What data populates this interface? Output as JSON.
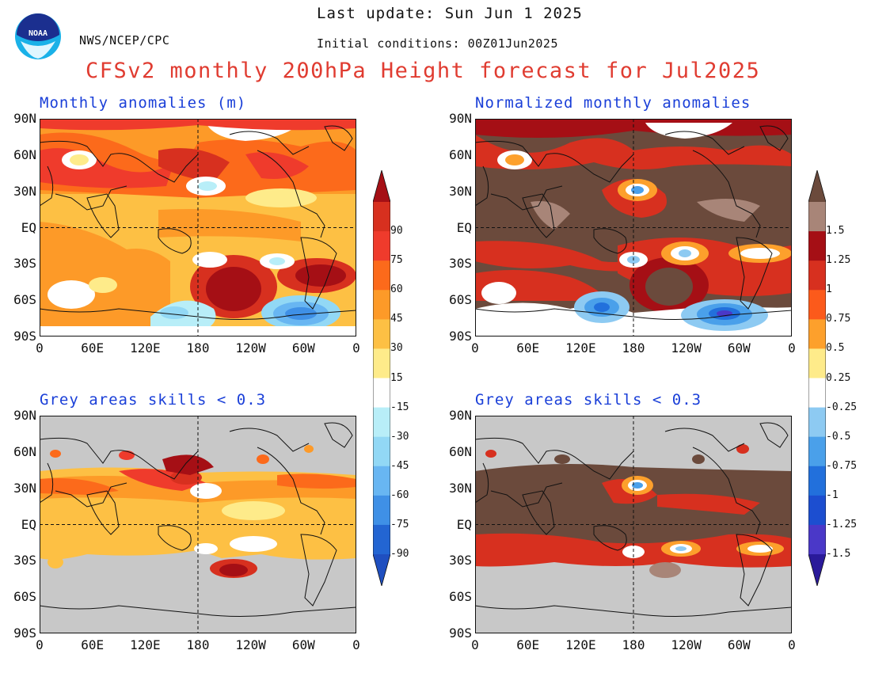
{
  "header": {
    "last_update": "Last update: Sun Jun 1 2025",
    "initial_conditions": "Initial conditions: 00Z01Jun2025",
    "agency": "NWS/NCEP/CPC",
    "logo_text": "NOAA",
    "title": "CFSv2 monthly 200hPa Height forecast for Jul2025"
  },
  "panels": {
    "top_left": "Monthly anomalies (m)",
    "top_right": "Normalized monthly anomalies",
    "bottom_left": "Grey areas skills < 0.3",
    "bottom_right": "Grey areas skills < 0.3"
  },
  "axes": {
    "lat_labels": [
      "90N",
      "60N",
      "30N",
      "EQ",
      "30S",
      "60S",
      "90S"
    ],
    "lon_labels": [
      "0",
      "60E",
      "120E",
      "180",
      "120W",
      "60W",
      "0"
    ]
  },
  "colorbar_left": {
    "labels": [
      "90",
      "75",
      "60",
      "45",
      "30",
      "15",
      "-15",
      "-30",
      "-45",
      "-60",
      "-75",
      "-90"
    ],
    "colors": [
      "#a50f15",
      "#d7301f",
      "#ef3b2c",
      "#fc6a1b",
      "#fd9a28",
      "#fdc044",
      "#feeb8a",
      "#ffffff",
      "#b8eef8",
      "#92d8f5",
      "#68b6f2",
      "#3f90e6",
      "#2365d2",
      "#1f4fc0"
    ]
  },
  "colorbar_right": {
    "labels": [
      "1.5",
      "1.25",
      "1",
      "0.75",
      "0.5",
      "0.25",
      "-0.25",
      "-0.5",
      "-0.75",
      "-1",
      "-1.25",
      "-1.5"
    ],
    "colors": [
      "#6b4a3c",
      "#a88578",
      "#a50f15",
      "#d7301f",
      "#fc5a1b",
      "#fda02c",
      "#feeb8a",
      "#ffffff",
      "#8dcaf2",
      "#4aa0ea",
      "#2270dc",
      "#1c4ed0",
      "#4a38c8",
      "#2a1a9a"
    ]
  },
  "colors": {
    "title": "#e03c31",
    "panel_title": "#1a3fd8",
    "skill_mask": "#c8c8c8"
  }
}
